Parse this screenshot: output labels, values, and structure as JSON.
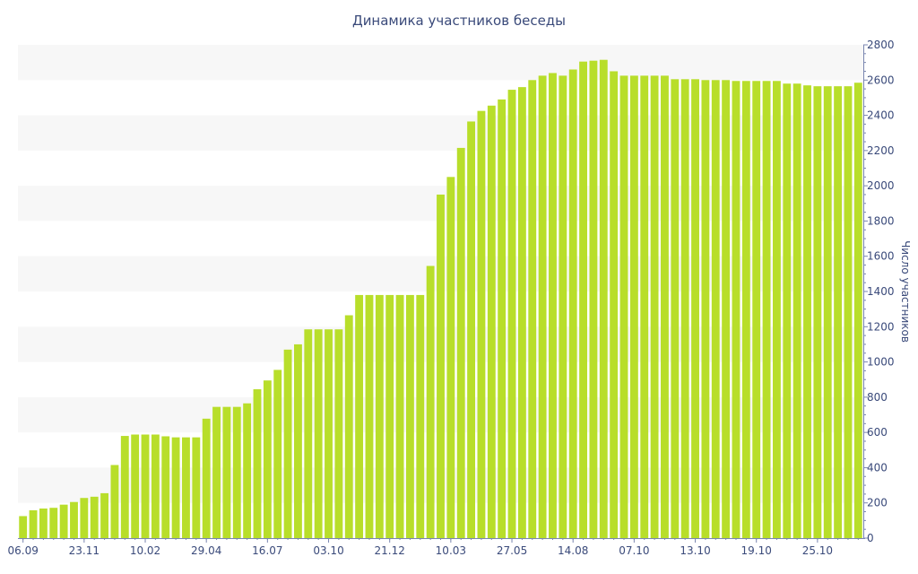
{
  "colors": {
    "bar": "#b8de2a",
    "text": "#3a4a7a",
    "axis": "#7a86b0",
    "band": "#f7f7f7"
  },
  "chart_data": {
    "type": "bar",
    "title": "Динамика участников беседы",
    "xlabel": "",
    "ylabel": "Число участников",
    "ylim": [
      0,
      2800
    ],
    "y_ticks": [
      0,
      200,
      400,
      600,
      800,
      1000,
      1200,
      1400,
      1600,
      1800,
      2000,
      2200,
      2400,
      2600,
      2800
    ],
    "y_axis_side": "right",
    "grid": "alternating horizontal bands",
    "x_tick_labels": [
      {
        "label": "06.09",
        "index": 0
      },
      {
        "label": "23.11",
        "index": 6
      },
      {
        "label": "10.02",
        "index": 12
      },
      {
        "label": "29.04",
        "index": 18
      },
      {
        "label": "16.07",
        "index": 24
      },
      {
        "label": "03.10",
        "index": 30
      },
      {
        "label": "21.12",
        "index": 36
      },
      {
        "label": "10.03",
        "index": 42
      },
      {
        "label": "27.05",
        "index": 48
      },
      {
        "label": "14.08",
        "index": 54
      },
      {
        "label": "07.10",
        "index": 60
      },
      {
        "label": "13.10",
        "index": 66
      },
      {
        "label": "19.10",
        "index": 72
      },
      {
        "label": "25.10",
        "index": 78
      }
    ],
    "values": [
      125,
      158,
      168,
      172,
      190,
      205,
      228,
      235,
      255,
      415,
      580,
      588,
      588,
      588,
      578,
      572,
      572,
      572,
      678,
      745,
      745,
      745,
      765,
      845,
      895,
      955,
      1070,
      1100,
      1185,
      1185,
      1185,
      1185,
      1265,
      1380,
      1380,
      1380,
      1380,
      1380,
      1380,
      1380,
      1545,
      1950,
      2050,
      2215,
      2365,
      2425,
      2455,
      2490,
      2545,
      2560,
      2600,
      2625,
      2640,
      2625,
      2660,
      2705,
      2710,
      2715,
      2650,
      2625,
      2625,
      2625,
      2625,
      2625,
      2605,
      2605,
      2605,
      2600,
      2600,
      2600,
      2595,
      2595,
      2595,
      2595,
      2595,
      2580,
      2580,
      2570,
      2565,
      2565,
      2565,
      2565,
      2585
    ]
  }
}
